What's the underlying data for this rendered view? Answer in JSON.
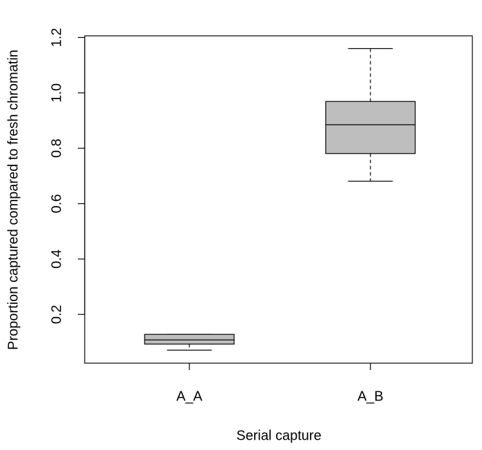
{
  "chart_data": {
    "type": "box",
    "xlabel": "Serial capture",
    "ylabel": "Proportion captured compared to fresh chromatin",
    "categories": [
      "A_A",
      "A_B"
    ],
    "boxes": [
      {
        "min": 0.071,
        "q1": 0.093,
        "median": 0.108,
        "q3": 0.128,
        "max": 0.128
      },
      {
        "min": 0.681,
        "q1": 0.781,
        "median": 0.885,
        "q3": 0.969,
        "max": 1.16
      }
    ],
    "color": "#bebebe",
    "ylim": [
      0.024,
      1.206
    ],
    "yticks": [
      0.2,
      0.4,
      0.6,
      0.8,
      {
        "value": 1,
        "label": "1.0"
      },
      1.2
    ]
  }
}
